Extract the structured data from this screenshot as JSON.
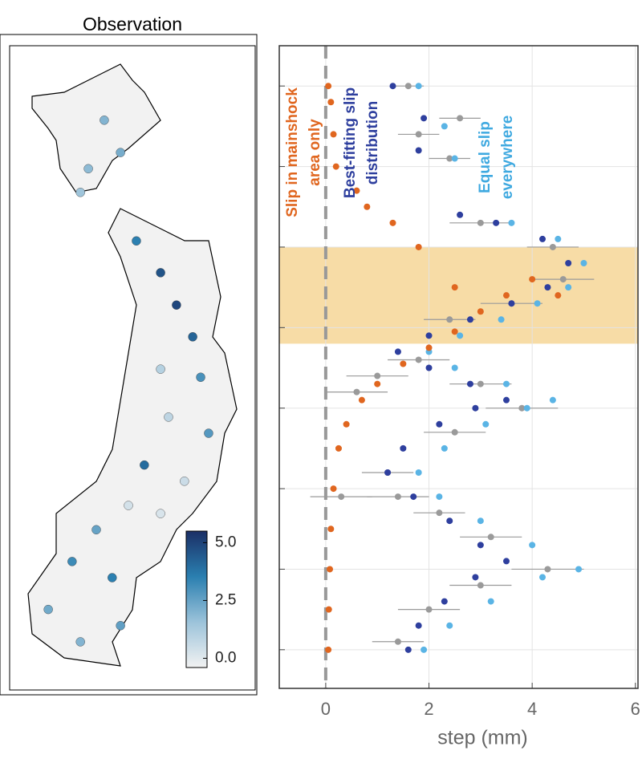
{
  "chart_data": [
    {
      "type": "map",
      "title": "Observation",
      "stations": [
        {
          "lon": 141.22,
          "lat": 44.6,
          "value": 2.0
        },
        {
          "lon": 141.67,
          "lat": 44.04,
          "value": 2.2
        },
        {
          "lon": 140.78,
          "lat": 43.76,
          "value": 1.8
        },
        {
          "lon": 140.56,
          "lat": 43.35,
          "value": 1.5
        },
        {
          "lon": 142.11,
          "lat": 42.51,
          "value": 3.5
        },
        {
          "lon": 142.78,
          "lat": 41.96,
          "value": 4.6
        },
        {
          "lon": 143.22,
          "lat": 41.4,
          "value": 4.9
        },
        {
          "lon": 143.67,
          "lat": 40.85,
          "value": 4.2
        },
        {
          "lon": 142.78,
          "lat": 40.29,
          "value": 1.0
        },
        {
          "lon": 143.89,
          "lat": 40.15,
          "value": 3.0
        },
        {
          "lon": 143.0,
          "lat": 39.46,
          "value": 0.8
        },
        {
          "lon": 144.11,
          "lat": 39.18,
          "value": 2.8
        },
        {
          "lon": 142.33,
          "lat": 38.63,
          "value": 4.0
        },
        {
          "lon": 143.44,
          "lat": 38.35,
          "value": 0.5
        },
        {
          "lon": 141.89,
          "lat": 37.93,
          "value": 0.3
        },
        {
          "lon": 142.78,
          "lat": 37.79,
          "value": 0.2
        },
        {
          "lon": 141.0,
          "lat": 37.51,
          "value": 2.5
        },
        {
          "lon": 140.33,
          "lat": 36.96,
          "value": 3.2
        },
        {
          "lon": 141.44,
          "lat": 36.68,
          "value": 3.5
        },
        {
          "lon": 139.67,
          "lat": 36.13,
          "value": 2.3
        },
        {
          "lon": 140.56,
          "lat": 35.57,
          "value": 2.0
        },
        {
          "lon": 141.67,
          "lat": 35.85,
          "value": 2.6
        }
      ],
      "colormap": [
        "#f2f2f2",
        "#9cc3da",
        "#2a7fb0",
        "#1b2f66"
      ],
      "clim": [
        -0.4,
        5.5
      ],
      "colorbar_ticks": [
        {
          "value": 0,
          "label": "0.0"
        },
        {
          "value": 2.5,
          "label": "2.5"
        },
        {
          "value": 5,
          "label": "5.0"
        }
      ]
    },
    {
      "type": "scatter",
      "xlabel": "step (mm)",
      "xlim": [
        -0.9,
        6.05
      ],
      "xticks": [
        0,
        2,
        4,
        6
      ],
      "ylim": [
        -0.48,
        7.5
      ],
      "ygrid": [
        0,
        1,
        2,
        3,
        4,
        5,
        6,
        7
      ],
      "grid": true,
      "vline": 0,
      "shaded_band": [
        3.8,
        5.0
      ],
      "band_color": "#f7dca6",
      "annotations": [
        {
          "lines": [
            "Slip in mainshock",
            "area only"
          ],
          "color": "#e0661f"
        },
        {
          "lines": [
            "Best-fitting slip",
            "distribution"
          ],
          "color": "#2e3f9e"
        },
        {
          "lines": [
            "Equal slip",
            "everywhere"
          ],
          "color": "#3fa9e0"
        }
      ],
      "series": [
        {
          "color": "#9a9a9a",
          "x": [
            1.4,
            2.0,
            3.0,
            4.3,
            3.2,
            2.2,
            1.4,
            1.2,
            2.5,
            3.8,
            3.0,
            1.8,
            0.3,
            1.0,
            2.4,
            3.6,
            4.6,
            4.4,
            3.0,
            0.6,
            1.8,
            2.4,
            1.6,
            2.6
          ],
          "y": [
            0.1,
            0.5,
            0.8,
            1.0,
            1.4,
            1.7,
            1.9,
            2.2,
            2.7,
            3.0,
            3.3,
            3.6,
            1.9,
            3.4,
            4.1,
            4.3,
            4.6,
            5.0,
            5.3,
            3.2,
            6.4,
            6.1,
            7.0,
            6.6
          ],
          "errors": [
            0.5,
            0.6,
            0.6,
            0.7,
            0.6,
            0.5,
            0.6,
            0.5,
            0.6,
            0.7,
            0.6,
            0.6,
            0.6,
            0.6,
            0.5,
            0.6,
            0.6,
            0.5,
            0.6,
            0.6,
            0.4,
            0.4,
            0.3,
            0.4
          ]
        },
        {
          "color": "#2e3f9e",
          "x": [
            1.6,
            1.8,
            2.3,
            2.9,
            3.5,
            3.0,
            2.4,
            1.7,
            1.2,
            1.5,
            2.2,
            2.9,
            3.5,
            2.8,
            2.0,
            1.4,
            2.0,
            2.8,
            3.6,
            4.3,
            4.7,
            4.2,
            3.3,
            2.6,
            1.8,
            1.9,
            1.3
          ],
          "y": [
            0,
            0.3,
            0.6,
            0.9,
            1.1,
            1.3,
            1.6,
            1.9,
            2.2,
            2.5,
            2.8,
            3.0,
            3.1,
            3.3,
            3.5,
            3.7,
            3.9,
            4.1,
            4.3,
            4.5,
            4.8,
            5.1,
            5.3,
            5.4,
            6.2,
            6.6,
            7.0
          ]
        },
        {
          "color": "#5ab4e5",
          "x": [
            1.9,
            2.4,
            3.2,
            4.2,
            4.9,
            4.0,
            3.0,
            2.2,
            1.8,
            2.3,
            3.1,
            3.9,
            4.4,
            3.5,
            2.5,
            2.0,
            2.6,
            3.4,
            4.1,
            4.7,
            5.0,
            4.5,
            3.6,
            2.5,
            2.3,
            1.8
          ],
          "y": [
            0,
            0.3,
            0.6,
            0.9,
            1.0,
            1.3,
            1.6,
            1.9,
            2.2,
            2.5,
            2.8,
            3.0,
            3.1,
            3.3,
            3.5,
            3.7,
            3.9,
            4.1,
            4.3,
            4.5,
            4.8,
            5.1,
            5.3,
            6.1,
            6.5,
            7.0
          ]
        },
        {
          "color": "#e0661f",
          "x": [
            0.05,
            0.06,
            0.08,
            0.1,
            0.15,
            0.25,
            0.4,
            0.7,
            1.0,
            1.5,
            2.0,
            2.5,
            3.0,
            3.5,
            4.0,
            4.5,
            2.5,
            1.8,
            1.3,
            0.8,
            0.6,
            0.2,
            0.15,
            0.1,
            0.05
          ],
          "y": [
            0,
            0.5,
            1.0,
            1.5,
            2.0,
            2.5,
            2.8,
            3.1,
            3.3,
            3.55,
            3.75,
            3.95,
            4.2,
            4.4,
            4.6,
            4.4,
            4.5,
            5.0,
            5.3,
            5.5,
            5.7,
            6.0,
            6.4,
            6.8,
            7.0
          ]
        }
      ]
    }
  ]
}
